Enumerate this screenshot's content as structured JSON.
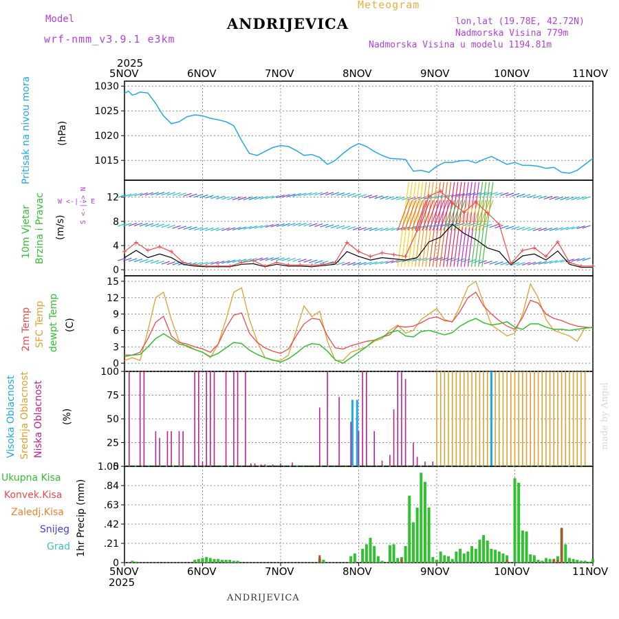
{
  "header": {
    "model_label": "Model",
    "model_name": "wrf-nmm_v3.9.1 e3km",
    "title": "ANDRIJEVICA",
    "subtitle": "Meteogram",
    "lonlat": "lon,lat (19.78E, 42.72N)",
    "elevation": "Nadmorska Visina 779m",
    "model_elevation": "Nadmorska Visina u modelu 1194.81m"
  },
  "time_axis": {
    "year": "2025",
    "labels": [
      "5NOV",
      "6NOV",
      "7NOV",
      "8NOV",
      "9NOV",
      "10NOV",
      "11NOV"
    ]
  },
  "panel_labels": {
    "pressure": {
      "name": "Pritisak na nivou mora",
      "unit": "(hPa)"
    },
    "wind": {
      "name1": "10m Vjetar",
      "name2": "Brzina i Pravac",
      "unit": "(m/s)",
      "rose": "W <-|-> E",
      "rose_ns": "S <-|-> N"
    },
    "temp": {
      "t2m": "2m Temp",
      "sfc": "SFC Temp",
      "dew": "dewpt Temp",
      "unit": "(C)"
    },
    "cloud": {
      "high": "Visoka Oblacnost",
      "mid": "Srednja Oblacnost",
      "low": "Niska Oblacnost",
      "unit": "(%)"
    },
    "precip": {
      "total": "Ukupna Kisa",
      "conv": "Konvek.Kisa",
      "frz": "Zaledj.Kisa",
      "snow": "Snijeg",
      "graupel": "Grad",
      "unit": "1hr Precip (mm)"
    }
  },
  "footer": {
    "station": "ANDRIJEVICA",
    "watermark": "made by Angel"
  },
  "colors": {
    "pressure": "#1ea8e8",
    "t2m": "#f04848",
    "sfc": "#e0a030",
    "dew": "#30c030",
    "gust": "#f04848",
    "wind": "#000000",
    "total": "#30c030",
    "conv": "#f04848",
    "frz": "#f08030",
    "snow": "#4040e0",
    "graupel": "#40c0c0",
    "low": "#c0208a",
    "mid": "#e0a030",
    "high": "#1ea8e8"
  },
  "chart_data": [
    {
      "type": "line",
      "title": "Pritisak na nivou mora",
      "ylabel": "(hPa)",
      "ylim": [
        1011,
        1031
      ],
      "yticks": [
        1015,
        1020,
        1025,
        1030
      ],
      "x_days": [
        0,
        0.05,
        0.1,
        0.15,
        0.2,
        0.3,
        0.4,
        0.45,
        0.5,
        0.6,
        0.7,
        0.8,
        0.9,
        1.0,
        1.1,
        1.2,
        1.3,
        1.4,
        1.5,
        1.6,
        1.7,
        1.8,
        1.9,
        2.0,
        2.1,
        2.2,
        2.3,
        2.4,
        2.5,
        2.6,
        2.7,
        2.8,
        2.9,
        3.0,
        3.1,
        3.2,
        3.3,
        3.4,
        3.5,
        3.6,
        3.7,
        3.8,
        3.9,
        4.0,
        4.1,
        4.2,
        4.3,
        4.4,
        4.5,
        4.6,
        4.7,
        4.8,
        4.9,
        5.0,
        5.1,
        5.2,
        5.3,
        5.4,
        5.5,
        5.6,
        5.7,
        5.8,
        5.9,
        6.0
      ],
      "series": [
        {
          "name": "pressure",
          "values": [
            1028.5,
            1029.0,
            1028.2,
            1028.4,
            1028.8,
            1028.6,
            1026.5,
            1025.2,
            1024.0,
            1022.4,
            1022.8,
            1023.8,
            1024.2,
            1024.0,
            1023.5,
            1023.2,
            1022.8,
            1022.0,
            1019.0,
            1016.4,
            1016.0,
            1016.8,
            1017.6,
            1018.0,
            1017.8,
            1017.0,
            1016.0,
            1016.2,
            1015.6,
            1014.2,
            1015.0,
            1016.4,
            1017.6,
            1018.4,
            1017.8,
            1016.8,
            1016.0,
            1015.4,
            1015.3,
            1015.2,
            1012.8,
            1013.0,
            1012.6,
            1013.8,
            1014.6,
            1014.6,
            1014.9,
            1015.0,
            1014.5,
            1015.2,
            1015.8,
            1015.0,
            1014.2,
            1014.6,
            1014.0,
            1014.0,
            1013.8,
            1013.4,
            1013.6,
            1012.6,
            1012.4,
            1013.0,
            1014.2,
            1015.4
          ]
        }
      ]
    },
    {
      "type": "line",
      "title": "10m Vjetar Brzina i Pravac",
      "ylabel": "(m/s)",
      "ylim": [
        -1,
        14.8
      ],
      "yticks": [
        0,
        4,
        8,
        12
      ],
      "x_days": [
        0,
        0.15,
        0.3,
        0.45,
        0.6,
        0.75,
        0.9,
        1.05,
        1.2,
        1.35,
        1.5,
        1.65,
        1.8,
        1.95,
        2.1,
        2.25,
        2.4,
        2.55,
        2.7,
        2.85,
        3.0,
        3.15,
        3.3,
        3.45,
        3.6,
        3.75,
        3.9,
        4.05,
        4.2,
        4.35,
        4.5,
        4.65,
        4.8,
        4.95,
        5.1,
        5.25,
        5.4,
        5.55,
        5.7,
        5.85,
        6.0
      ],
      "series": [
        {
          "name": "gust",
          "values": [
            3.0,
            4.5,
            3.2,
            3.8,
            3.0,
            1.2,
            0.8,
            0.6,
            0.6,
            0.6,
            1.2,
            1.5,
            0.6,
            1.2,
            0.8,
            0.8,
            0.7,
            0.9,
            1.2,
            4.5,
            3.0,
            2.2,
            2.8,
            2.5,
            2.2,
            6.5,
            12.2,
            13.0,
            11.0,
            9.5,
            11.2,
            9.4,
            7.5,
            1.0,
            3.2,
            3.6,
            2.2,
            4.6,
            1.2,
            0.6,
            0.6
          ]
        },
        {
          "name": "wind",
          "values": [
            2.0,
            3.2,
            2.0,
            2.6,
            2.0,
            0.9,
            0.6,
            0.5,
            0.5,
            0.5,
            0.9,
            1.0,
            0.5,
            0.9,
            0.6,
            0.6,
            0.5,
            0.7,
            0.9,
            3.0,
            2.2,
            1.6,
            2.0,
            1.8,
            1.6,
            2.0,
            4.6,
            5.4,
            7.5,
            6.0,
            5.0,
            3.6,
            3.0,
            0.8,
            2.3,
            2.6,
            1.6,
            3.1,
            0.9,
            0.4,
            0.4
          ]
        }
      ]
    },
    {
      "type": "line",
      "title": "2m Temp / SFC Temp / dewpt Temp",
      "ylabel": "(C)",
      "ylim": [
        -1.5,
        16
      ],
      "yticks": [
        0,
        3,
        6,
        9,
        12,
        15
      ],
      "x_days": [
        0,
        0.1,
        0.2,
        0.3,
        0.4,
        0.5,
        0.6,
        0.7,
        0.8,
        0.9,
        1.0,
        1.1,
        1.2,
        1.3,
        1.4,
        1.5,
        1.6,
        1.7,
        1.8,
        1.9,
        2.0,
        2.1,
        2.2,
        2.3,
        2.4,
        2.5,
        2.6,
        2.7,
        2.8,
        2.9,
        3.0,
        3.1,
        3.2,
        3.3,
        3.4,
        3.5,
        3.6,
        3.7,
        3.8,
        3.9,
        4.0,
        4.1,
        4.2,
        4.3,
        4.4,
        4.5,
        4.6,
        4.7,
        4.8,
        4.9,
        5.0,
        5.1,
        5.2,
        5.3,
        5.4,
        5.5,
        5.6,
        5.7,
        5.8,
        5.9,
        6.0
      ],
      "series": [
        {
          "name": "2m Temp",
          "values": [
            1.5,
            1.5,
            2.0,
            4.5,
            7.5,
            8.6,
            5.0,
            3.8,
            3.5,
            3.0,
            2.6,
            2.0,
            3.5,
            6.5,
            8.8,
            9.2,
            5.5,
            3.8,
            2.8,
            2.2,
            1.8,
            2.6,
            5.0,
            7.2,
            8.2,
            8.0,
            5.0,
            2.8,
            2.6,
            3.2,
            3.6,
            4.0,
            4.2,
            4.8,
            5.2,
            6.8,
            6.6,
            6.8,
            7.4,
            8.2,
            8.5,
            7.8,
            7.6,
            9.5,
            12.0,
            13.0,
            10.5,
            9.0,
            7.8,
            6.8,
            6.2,
            8.4,
            11.5,
            11.0,
            9.0,
            8.2,
            7.8,
            7.2,
            6.8,
            6.6,
            6.5
          ]
        },
        {
          "name": "SFC Temp",
          "values": [
            0.5,
            1.0,
            0.5,
            6.0,
            12.0,
            13.0,
            8.0,
            4.0,
            3.0,
            2.5,
            2.0,
            1.0,
            3.5,
            8.0,
            13.0,
            13.8,
            8.0,
            4.0,
            1.0,
            0.5,
            0.5,
            1.5,
            6.0,
            10.5,
            8.5,
            9.5,
            4.0,
            0.5,
            0.5,
            2.0,
            2.5,
            3.0,
            4.0,
            4.5,
            6.0,
            7.0,
            5.5,
            6.0,
            8.0,
            9.0,
            10.0,
            8.0,
            7.5,
            10.5,
            14.0,
            15.0,
            11.0,
            7.0,
            6.0,
            5.0,
            5.5,
            9.0,
            14.5,
            12.0,
            8.0,
            6.0,
            5.5,
            5.0,
            4.0,
            6.5,
            6.5
          ]
        },
        {
          "name": "dewpt Temp",
          "values": [
            1.2,
            1.5,
            1.6,
            3.0,
            4.5,
            5.4,
            4.5,
            3.5,
            3.2,
            2.5,
            2.0,
            1.2,
            1.8,
            2.8,
            3.8,
            3.6,
            2.4,
            1.6,
            1.0,
            0.6,
            0.2,
            0.8,
            1.8,
            3.0,
            3.6,
            3.4,
            2.2,
            0.6,
            0.0,
            1.0,
            2.0,
            3.0,
            4.2,
            4.8,
            5.6,
            6.0,
            5.0,
            4.8,
            5.8,
            6.0,
            5.6,
            5.2,
            5.6,
            6.8,
            7.6,
            8.2,
            7.4,
            7.0,
            7.2,
            7.6,
            6.6,
            6.2,
            7.2,
            7.2,
            6.6,
            6.2,
            6.2,
            6.0,
            6.2,
            6.4,
            6.6
          ]
        }
      ]
    },
    {
      "type": "bar",
      "title": "Oblacnost",
      "ylabel": "(%)",
      "ylim": [
        0,
        100
      ],
      "yticks": [
        0,
        25,
        50,
        75,
        100
      ],
      "series": [
        {
          "name": "Niska",
          "x_days": [
            0.06,
            0.2,
            0.25,
            0.4,
            0.45,
            0.55,
            0.6,
            0.7,
            0.75,
            0.9,
            0.95,
            1.0,
            1.05,
            1.1,
            1.15,
            1.3,
            1.4,
            1.45,
            1.55,
            1.62,
            1.67,
            1.75,
            1.8,
            1.9,
            2.0,
            2.15,
            2.5,
            2.6,
            2.75,
            2.9,
            3.0,
            3.05,
            3.1,
            3.2,
            3.3,
            3.4,
            3.45,
            3.5,
            3.55,
            3.6,
            3.7,
            3.75,
            3.85,
            3.95
          ],
          "values": [
            100,
            100,
            100,
            37,
            30,
            37,
            37,
            37,
            37,
            100,
            100,
            5,
            100,
            100,
            100,
            100,
            100,
            100,
            100,
            3,
            3,
            2,
            2,
            2,
            3,
            4,
            62,
            100,
            73,
            47,
            37,
            100,
            100,
            37,
            6,
            12,
            60,
            100,
            100,
            92,
            25,
            10,
            5,
            5
          ]
        },
        {
          "name": "Srednja",
          "x_days": [
            4.0,
            4.05,
            4.1,
            4.15,
            4.2,
            4.25,
            4.3,
            4.35,
            4.4,
            4.45,
            4.5,
            4.55,
            4.6,
            4.65,
            4.7,
            4.75,
            4.8,
            4.85,
            4.9,
            4.95,
            5.0,
            5.05,
            5.1,
            5.15,
            5.2,
            5.25,
            5.3,
            5.35,
            5.4,
            5.45,
            5.5,
            5.55,
            5.6,
            5.65,
            5.7,
            5.75,
            5.8,
            5.85,
            5.9
          ],
          "values": [
            100,
            100,
            100,
            100,
            100,
            100,
            100,
            100,
            100,
            100,
            100,
            100,
            100,
            100,
            100,
            100,
            100,
            100,
            100,
            100,
            100,
            100,
            100,
            100,
            100,
            100,
            100,
            100,
            100,
            100,
            100,
            100,
            100,
            100,
            100,
            100,
            100,
            100,
            100
          ]
        },
        {
          "name": "Visoka",
          "x_days": [
            2.92,
            2.98,
            4.7
          ],
          "values": [
            70,
            70,
            100
          ]
        }
      ]
    },
    {
      "type": "bar",
      "title": "1hr Precip",
      "ylabel": "1hr Precip (mm)",
      "ylim": [
        0,
        1.05
      ],
      "yticks": [
        0,
        0.21,
        0.42,
        0.63,
        0.84,
        1.05
      ],
      "series": [
        {
          "name": "Ukupna Kisa",
          "x_days": [
            0.1,
            0.15,
            0.9,
            0.95,
            1.0,
            1.05,
            1.1,
            1.15,
            1.2,
            1.25,
            1.3,
            1.35,
            1.4,
            1.45,
            2.5,
            2.55,
            2.9,
            2.95,
            3.05,
            3.1,
            3.15,
            3.2,
            3.25,
            3.3,
            3.4,
            3.45,
            3.5,
            3.55,
            3.6,
            3.65,
            3.7,
            3.75,
            3.8,
            3.85,
            3.9,
            3.95,
            4.0,
            4.05,
            4.1,
            4.15,
            4.2,
            4.25,
            4.3,
            4.35,
            4.4,
            4.45,
            4.5,
            4.55,
            4.6,
            4.65,
            4.7,
            4.75,
            4.8,
            4.85,
            4.9,
            5.0,
            5.05,
            5.1,
            5.15,
            5.2,
            5.25,
            5.3,
            5.35,
            5.4,
            5.45,
            5.5,
            5.55,
            5.6,
            5.65,
            5.7,
            5.75,
            5.8,
            5.85,
            5.9,
            5.95,
            6.0
          ],
          "values": [
            0.02,
            0.01,
            0.03,
            0.04,
            0.05,
            0.06,
            0.05,
            0.04,
            0.04,
            0.03,
            0.03,
            0.03,
            0.02,
            0.02,
            0.05,
            0.03,
            0.07,
            0.1,
            0.15,
            0.2,
            0.27,
            0.18,
            0.07,
            0.02,
            0.19,
            0.2,
            0.05,
            0.06,
            0.18,
            0.73,
            0.44,
            0.6,
            0.98,
            0.88,
            0.6,
            0.06,
            0.03,
            0.12,
            0.08,
            0.07,
            0.04,
            0.12,
            0.15,
            0.1,
            0.12,
            0.18,
            0.15,
            0.25,
            0.3,
            0.24,
            0.15,
            0.14,
            0.12,
            0.1,
            0.08,
            0.92,
            0.87,
            0.35,
            0.34,
            0.09,
            0.08,
            0.03,
            0.02,
            0.05,
            0.04,
            0.04,
            0.07,
            0.37,
            0.2,
            0.05,
            0.04,
            0.03,
            0.02,
            0.02,
            0.01,
            0.04
          ]
        },
        {
          "name": "Konvek.Kisa",
          "x_days": [
            2.5,
            3.55,
            4.9,
            5.5,
            5.55,
            5.6
          ],
          "values": [
            0.08,
            0.04,
            0.03,
            0.04,
            0.03,
            0.38
          ]
        }
      ]
    }
  ]
}
